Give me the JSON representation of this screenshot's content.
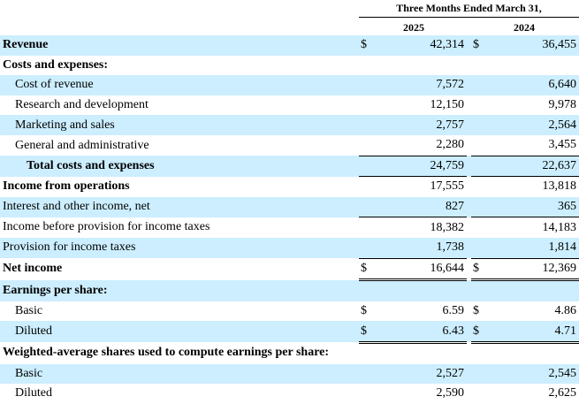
{
  "header": {
    "period": "Three Months Ended March 31,",
    "year_a": "2025",
    "year_b": "2024"
  },
  "rows": [
    {
      "label": "Revenue",
      "cur_a": "$",
      "a": "42,314",
      "cur_b": "$",
      "b": "36,455",
      "bold": true,
      "indent": 0,
      "shaded": true
    },
    {
      "label": "Costs and expenses:",
      "cur_a": "",
      "a": "",
      "cur_b": "",
      "b": "",
      "bold": true,
      "indent": 0,
      "shaded": false
    },
    {
      "label": "Cost of revenue",
      "cur_a": "",
      "a": "7,572",
      "cur_b": "",
      "b": "6,640",
      "bold": false,
      "indent": 1,
      "shaded": true
    },
    {
      "label": "Research and development",
      "cur_a": "",
      "a": "12,150",
      "cur_b": "",
      "b": "9,978",
      "bold": false,
      "indent": 1,
      "shaded": false
    },
    {
      "label": "Marketing and sales",
      "cur_a": "",
      "a": "2,757",
      "cur_b": "",
      "b": "2,564",
      "bold": false,
      "indent": 1,
      "shaded": true
    },
    {
      "label": "General and administrative",
      "cur_a": "",
      "a": "2,280",
      "cur_b": "",
      "b": "3,455",
      "bold": false,
      "indent": 1,
      "shaded": false
    },
    {
      "label": "Total costs and expenses",
      "cur_a": "",
      "a": "24,759",
      "cur_b": "",
      "b": "22,637",
      "bold": true,
      "indent": 2,
      "shaded": true,
      "top_rule": true
    },
    {
      "label": "Income from operations",
      "cur_a": "",
      "a": "17,555",
      "cur_b": "",
      "b": "13,818",
      "bold": true,
      "indent": 0,
      "shaded": false,
      "top_rule": true
    },
    {
      "label": "Interest and other income, net",
      "cur_a": "",
      "a": "827",
      "cur_b": "",
      "b": "365",
      "bold": false,
      "indent": 0,
      "shaded": true
    },
    {
      "label": "Income before provision for income taxes",
      "cur_a": "",
      "a": "18,382",
      "cur_b": "",
      "b": "14,183",
      "bold": false,
      "indent": 0,
      "shaded": false,
      "top_rule": true
    },
    {
      "label": "Provision for income taxes",
      "cur_a": "",
      "a": "1,738",
      "cur_b": "",
      "b": "1,814",
      "bold": false,
      "indent": 0,
      "shaded": true
    },
    {
      "label": "Net income",
      "cur_a": "$",
      "a": "16,644",
      "cur_b": "$",
      "b": "12,369",
      "bold": true,
      "indent": 0,
      "shaded": false,
      "top_rule": true,
      "dbl_bottom": true
    },
    {
      "label": "Earnings per share:",
      "cur_a": "",
      "a": "",
      "cur_b": "",
      "b": "",
      "bold": true,
      "indent": 0,
      "shaded": true
    },
    {
      "label": "Basic",
      "cur_a": "$",
      "a": "6.59",
      "cur_b": "$",
      "b": "4.86",
      "bold": false,
      "indent": 1,
      "shaded": false
    },
    {
      "label": "Diluted",
      "cur_a": "$",
      "a": "6.43",
      "cur_b": "$",
      "b": "4.71",
      "bold": false,
      "indent": 1,
      "shaded": true,
      "dbl_bottom": true
    },
    {
      "label": "Weighted-average shares used to compute earnings per share:",
      "cur_a": "",
      "a": "",
      "cur_b": "",
      "b": "",
      "bold": true,
      "indent": 0,
      "shaded": false
    },
    {
      "label": "Basic",
      "cur_a": "",
      "a": "2,527",
      "cur_b": "",
      "b": "2,545",
      "bold": false,
      "indent": 1,
      "shaded": true
    },
    {
      "label": "Diluted",
      "cur_a": "",
      "a": "2,590",
      "cur_b": "",
      "b": "2,625",
      "bold": false,
      "indent": 1,
      "shaded": false
    }
  ]
}
